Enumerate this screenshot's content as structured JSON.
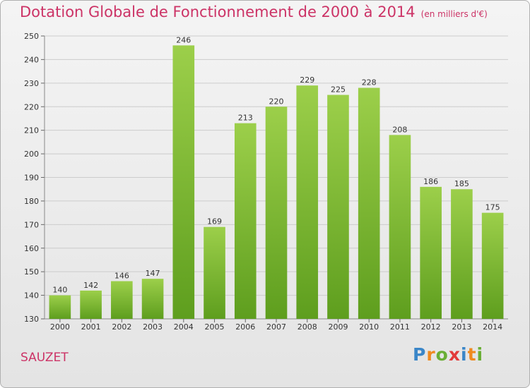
{
  "header": {
    "title": "Dotation Globale de Fonctionnement de 2000 à 2014",
    "unit": "(en milliers d'€)"
  },
  "footer": {
    "place": "SAUZET",
    "logo": [
      "P",
      "r",
      "o",
      "x",
      "i",
      "t",
      "i"
    ],
    "logo_colors": [
      "#3a86c8",
      "#ef8a1f",
      "#6aae35",
      "#e23a3a",
      "#3a86c8",
      "#ef8a1f",
      "#6aae35"
    ]
  },
  "colors": {
    "bar": "#8cc63f",
    "bar_dark": "#5e9e1e",
    "grid": "#cccccc",
    "title": "#cc3366"
  },
  "chart_data": {
    "type": "bar",
    "categories": [
      "2000",
      "2001",
      "2002",
      "2003",
      "2004",
      "2005",
      "2006",
      "2007",
      "2008",
      "2009",
      "2010",
      "2011",
      "2012",
      "2013",
      "2014"
    ],
    "values": [
      140,
      142,
      146,
      147,
      246,
      169,
      213,
      220,
      229,
      225,
      228,
      208,
      186,
      185,
      175
    ],
    "ylim": [
      130,
      250
    ],
    "yticks": [
      130,
      140,
      150,
      160,
      170,
      180,
      190,
      200,
      210,
      220,
      230,
      240,
      250
    ],
    "grid": true
  }
}
